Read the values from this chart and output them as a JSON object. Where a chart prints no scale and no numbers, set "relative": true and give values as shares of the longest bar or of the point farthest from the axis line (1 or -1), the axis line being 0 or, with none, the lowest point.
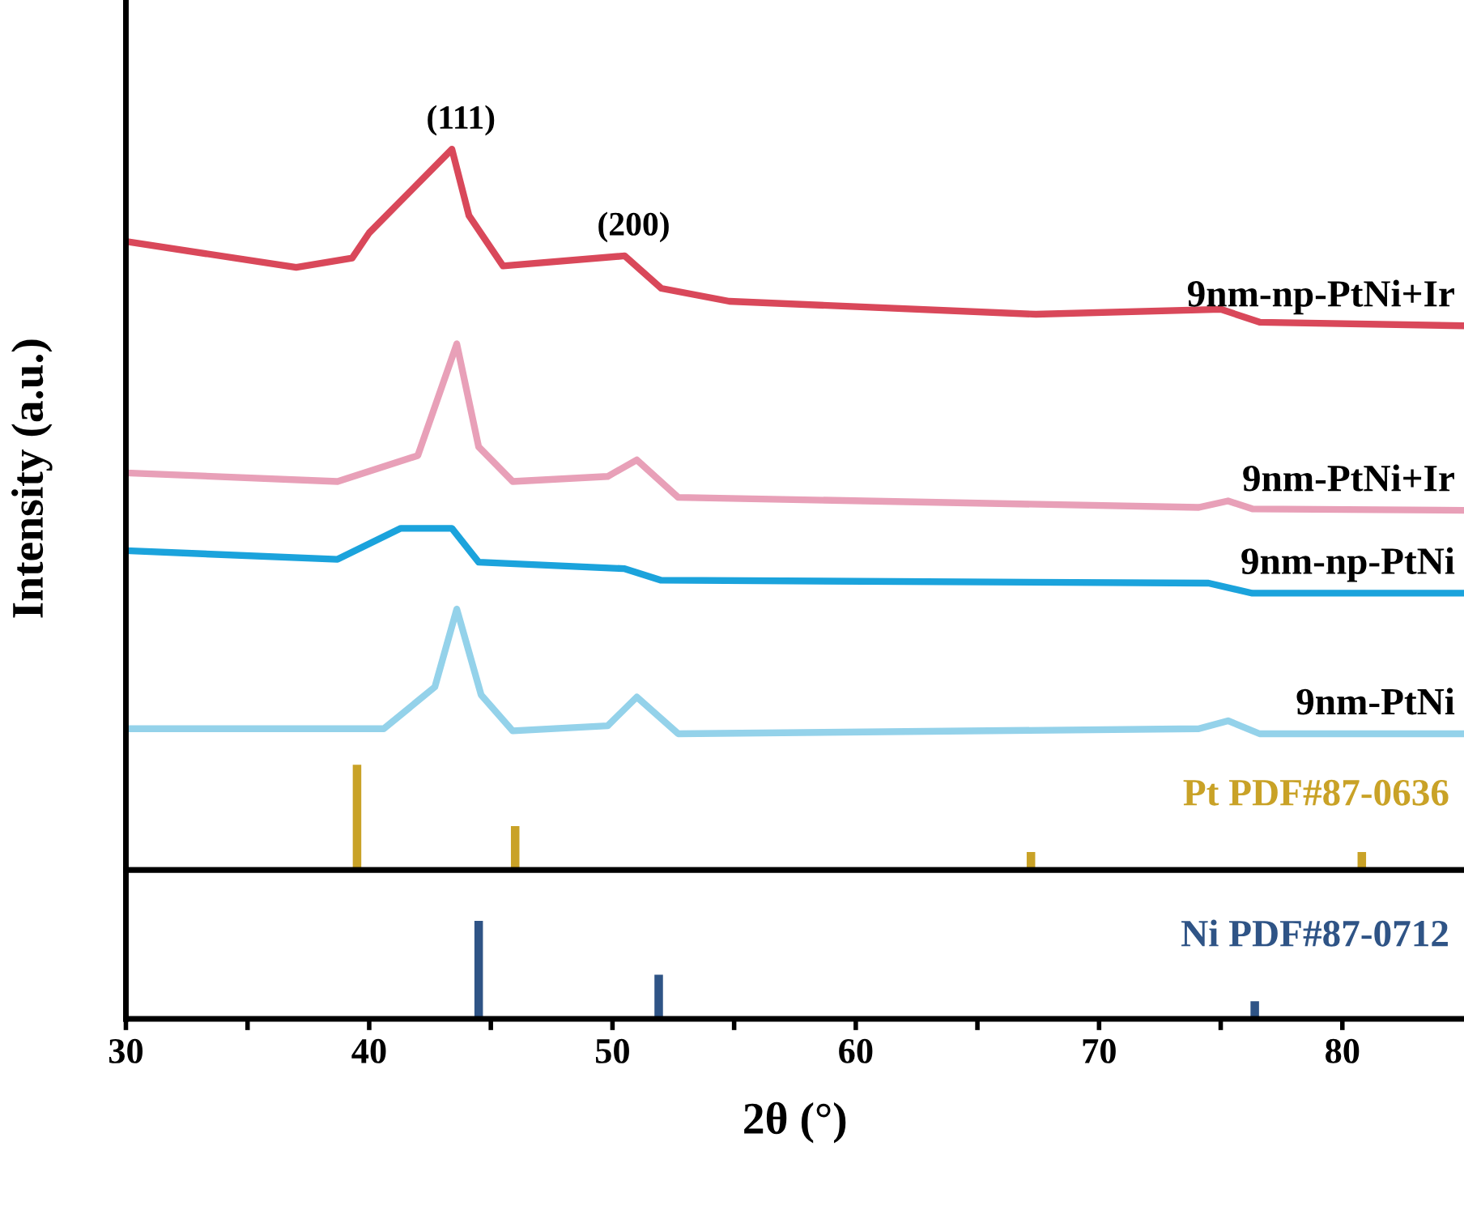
{
  "chart_data": [
    {
      "type": "line",
      "relative": true,
      "ylabel": "Intensity (a.u.)",
      "xlim": [
        30,
        85
      ],
      "tick_labels": false,
      "legend": false,
      "grid": false,
      "annotations": [
        {
          "text": "(111)",
          "x": 43.4,
          "y": 1.0
        },
        {
          "text": "(200)",
          "x": 50.5,
          "y": 0.852
        }
      ],
      "series": [
        {
          "name": "9nm-np-PtNi+Ir",
          "color": "#d9485a",
          "x": [
            30,
            37.0,
            39.3,
            40.0,
            43.4,
            44.1,
            45.5,
            50.5,
            52.0,
            54.8,
            67.4,
            75.0,
            76.6,
            85
          ],
          "values": [
            0.872,
            0.836,
            0.849,
            0.884,
            1.0,
            0.908,
            0.838,
            0.852,
            0.807,
            0.789,
            0.771,
            0.778,
            0.76,
            0.755
          ]
        },
        {
          "name": "9nm-PtNi+Ir",
          "color": "#e8a0b8",
          "x": [
            30,
            38.7,
            42.0,
            43.6,
            44.5,
            45.9,
            49.8,
            51.0,
            52.7,
            74.1,
            75.3,
            76.3,
            85
          ],
          "values": [
            0.551,
            0.539,
            0.575,
            0.73,
            0.587,
            0.539,
            0.546,
            0.569,
            0.517,
            0.503,
            0.512,
            0.501,
            0.499
          ]
        },
        {
          "name": "9nm-np-PtNi",
          "color": "#1ba3dc",
          "x": [
            30,
            38.7,
            41.3,
            43.4,
            44.5,
            50.5,
            52.0,
            74.5,
            76.3,
            85
          ],
          "values": [
            0.443,
            0.431,
            0.474,
            0.474,
            0.427,
            0.418,
            0.402,
            0.398,
            0.384,
            0.384
          ]
        },
        {
          "name": "9nm-PtNi",
          "color": "#94d2ea",
          "x": [
            30,
            40.6,
            42.7,
            43.6,
            44.6,
            45.9,
            49.8,
            51.0,
            52.7,
            74.1,
            75.3,
            76.6,
            85
          ],
          "values": [
            0.196,
            0.196,
            0.254,
            0.362,
            0.243,
            0.193,
            0.2,
            0.24,
            0.189,
            0.196,
            0.207,
            0.189,
            0.189
          ]
        },
        {
          "name": "Pt PDF#87-0636",
          "type": "bar",
          "color": "#c9a227",
          "x": [
            39.5,
            46.0,
            67.2,
            80.8
          ],
          "values": [
            0.146,
            0.061,
            0.025,
            0.025
          ]
        }
      ]
    },
    {
      "type": "bar",
      "relative": true,
      "xlabel": "2θ (°)",
      "xlim": [
        30,
        85
      ],
      "tick_labels": "x",
      "legend": false,
      "grid": false,
      "xticks": [
        30,
        {
          "value": 35,
          "label": null
        },
        40,
        {
          "value": 45,
          "label": null
        },
        50,
        {
          "value": 55,
          "label": null
        },
        60,
        {
          "value": 65,
          "label": null
        },
        70,
        {
          "value": 75,
          "label": null
        },
        80
      ],
      "series": [
        {
          "name": "Ni PDF#87-0712",
          "color": "#2f5486",
          "x": [
            44.5,
            51.9,
            76.4
          ],
          "values": [
            1,
            0.45,
            0.18
          ]
        }
      ]
    }
  ]
}
